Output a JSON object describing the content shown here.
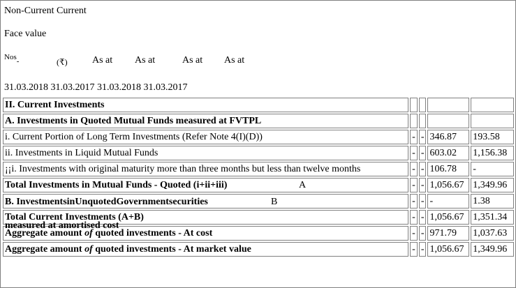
{
  "header": {
    "line1": "Non-Current Current",
    "line2": "Face value",
    "nos": "Nos",
    "nos_suffix": "-",
    "currency": "(₹)",
    "as_at": [
      "As at",
      "As at",
      "As at",
      "As at"
    ],
    "dates": "31.03.2018 31.03.2017   31.03.2018 31.03.2017"
  },
  "rows": [
    {
      "label": "II. Current Investments",
      "bold": true,
      "c2": "",
      "c3": "",
      "v1": "",
      "v2": ""
    },
    {
      "label": "A. Investments in Quoted Mutual Funds measured at FVTPL",
      "bold": true,
      "c2": "",
      "c3": "",
      "v1": "",
      "v2": ""
    },
    {
      "label": "i. Current Portion of Long Term Investments (Refer Note 4(I)(D))",
      "bold": false,
      "c2": "-",
      "c3": "-",
      "v1": "346.87",
      "v2": "193.58"
    },
    {
      "label": "ii. Investments in Liquid Mutual Funds",
      "bold": false,
      "c2": "-",
      "c3": "-",
      "v1": "603.02",
      "v2": "1,156.38"
    },
    {
      "label": "¡¡i. Investments with original maturity more than three months but less than twelve months",
      "bold": false,
      "c2": "-",
      "c3": "-",
      "v1": "106.78",
      "v2": "-"
    },
    {
      "label": "Total Investments in Mutual Funds - Quoted (i+ii+iii)",
      "letter": "A",
      "bold": true,
      "c2": "-",
      "c3": "-",
      "v1": "1,056.67",
      "v2": "1,349.96"
    },
    {
      "label": "B. InvestmentsinUnquotedGovernmentsecurities",
      "label2": "measured at amortised cost",
      "letter": "B",
      "bold": true,
      "c2": "-",
      "c3": "-",
      "v1": "-",
      "v2": "1.38"
    },
    {
      "label": "Total Current Investments (A+B)",
      "bold": true,
      "c2": "-",
      "c3": "-",
      "v1": "1,056.67",
      "v2": "1,351.34"
    },
    {
      "label_a": "Aggregate amount ",
      "label_b": "of",
      "label_c": " quoted investments - At cost",
      "bold": true,
      "c2": "-",
      "c3": "-",
      "v1": "971.79",
      "v2": "1,037.63"
    },
    {
      "label_a": "Aggregate amount ",
      "label_b": "of",
      "label_c": " quoted investments - At market value",
      "bold": true,
      "c2": "-",
      "c3": "-",
      "v1": "1,056.67",
      "v2": "1,349.96"
    }
  ]
}
